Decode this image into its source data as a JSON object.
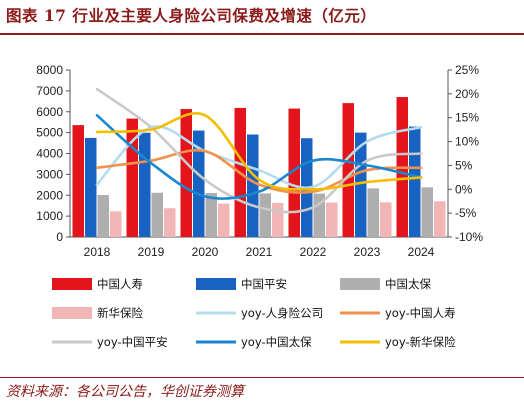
{
  "header": {
    "title": "图表 17   行业及主要人身险公司保费及增速（亿元）"
  },
  "footer": {
    "source": "资料来源：各公司公告，华创证券测算"
  },
  "chart_data": {
    "type": "bar",
    "categories": [
      "2018",
      "2019",
      "2020",
      "2021",
      "2022",
      "2023",
      "2024"
    ],
    "ylim": [
      0,
      8000
    ],
    "y_ticks": [
      0,
      1000,
      2000,
      3000,
      4000,
      5000,
      6000,
      7000,
      8000
    ],
    "y2lim": [
      -10,
      25
    ],
    "y2_ticks": [
      "-10%",
      "-5%",
      "0%",
      "5%",
      "10%",
      "15%",
      "20%",
      "25%"
    ],
    "grid": false,
    "legend_position": "bottom",
    "bar_series": [
      {
        "name": "中国人寿",
        "color": "#e3141b",
        "values": [
          5359,
          5672,
          6129,
          6183,
          6152,
          6413,
          6705
        ]
      },
      {
        "name": "中国平安",
        "color": "#1863c2",
        "values": [
          4745,
          4995,
          5100,
          4910,
          4730,
          5000,
          5290
        ]
      },
      {
        "name": "中国太保",
        "color": "#aeaeae",
        "values": [
          2010,
          2120,
          2110,
          2090,
          2080,
          2330,
          2380
        ]
      },
      {
        "name": "新华保险",
        "color": "#f2b5b5",
        "values": [
          1230,
          1380,
          1600,
          1630,
          1650,
          1660,
          1710
        ]
      }
    ],
    "line_series": [
      {
        "name": "yoy-人身险公司",
        "color": "#b5dcec",
        "values": [
          1.0,
          13.0,
          8.0,
          4.0,
          0.5,
          10.0,
          13.0
        ]
      },
      {
        "name": "yoy-中国人寿",
        "color": "#f0914f",
        "values": [
          4.5,
          6.0,
          8.0,
          1.0,
          -0.5,
          4.0,
          4.5
        ]
      },
      {
        "name": "yoy-中国平安",
        "color": "#c9c9c9",
        "values": [
          21.0,
          13.0,
          2.0,
          -3.8,
          -3.8,
          6.0,
          7.5
        ]
      },
      {
        "name": "yoy-中国太保",
        "color": "#1a86cf",
        "values": [
          15.5,
          5.5,
          -1.5,
          -0.5,
          6.0,
          5.0,
          2.5
        ]
      },
      {
        "name": "yoy-新华保险",
        "color": "#f4bd00",
        "values": [
          12.0,
          12.5,
          15.5,
          2.0,
          0.0,
          1.5,
          2.5
        ]
      }
    ]
  }
}
